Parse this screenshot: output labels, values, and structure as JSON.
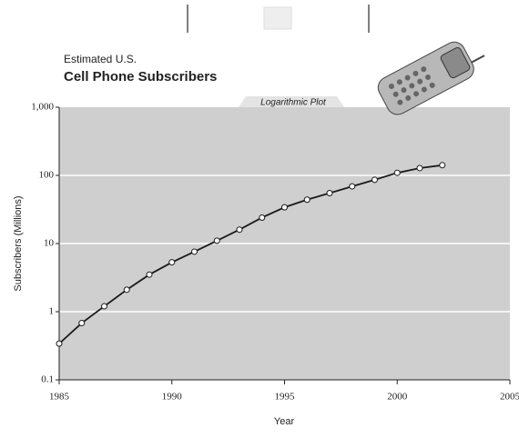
{
  "chart_data": {
    "type": "line",
    "subtitle": "Estimated U.S.",
    "title": "Cell Phone Subscribers",
    "annotation": "Logarithmic Plot",
    "x_label": "Year",
    "y_label": "Subscribers (Millions)",
    "x": [
      1985,
      1986,
      1987,
      1988,
      1989,
      1990,
      1991,
      1992,
      1993,
      1994,
      1995,
      1996,
      1997,
      1998,
      1999,
      2000,
      2001,
      2002
    ],
    "values": [
      0.34,
      0.68,
      1.2,
      2.1,
      3.5,
      5.3,
      7.6,
      11,
      16,
      24,
      34,
      44,
      55,
      69,
      86,
      109,
      128,
      141
    ],
    "color": "#1a1a1a",
    "xlim": [
      1985,
      2005
    ],
    "xticks": [
      1985,
      1990,
      1995,
      2000,
      2005
    ],
    "ylim": [
      0.1,
      1000
    ],
    "yticks": [
      0.1,
      1,
      10,
      100,
      {
        "value": 1000,
        "label": "1,000"
      }
    ],
    "yscale": "log",
    "grid": true
  }
}
